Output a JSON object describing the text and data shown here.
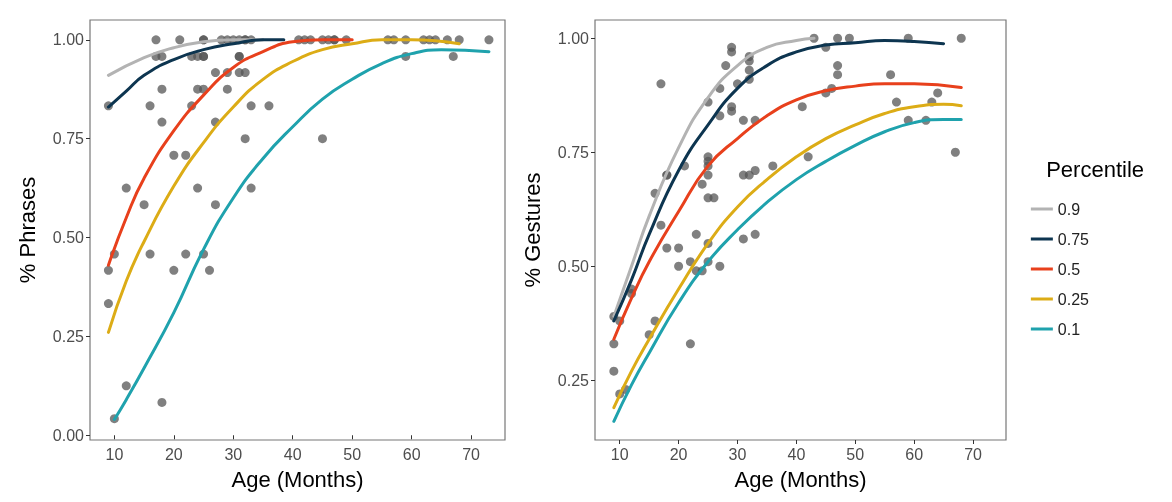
{
  "chart_data": [
    {
      "type": "scatter",
      "xlabel": "Age (Months)",
      "ylabel": "% Phrases",
      "xlim": [
        5.9,
        75.7
      ],
      "ylim": [
        -0.012,
        1.05
      ],
      "xticks": [
        10,
        20,
        30,
        40,
        50,
        60,
        70
      ],
      "yticks": [
        {
          "value": 0,
          "label": "0.00"
        },
        {
          "value": 0.25,
          "label": "0.25"
        },
        {
          "value": 0.5,
          "label": "0.50"
        },
        {
          "value": 0.75,
          "label": "0.75"
        },
        {
          "value": 1,
          "label": "1.00"
        }
      ],
      "grid": false,
      "legend": false,
      "series": [
        {
          "color": "#555555",
          "marker": "circle",
          "x": [
            17,
            21,
            25,
            25,
            28,
            29,
            30,
            31,
            32,
            32,
            33,
            41,
            42,
            43,
            45,
            46,
            47,
            47,
            49,
            56,
            57,
            59,
            62,
            63,
            64,
            66,
            68,
            73,
            17,
            18,
            23,
            24,
            25,
            25,
            31,
            31,
            59,
            67,
            27,
            29,
            31,
            32,
            18,
            24,
            25,
            29,
            9,
            16,
            23,
            33,
            36,
            18,
            27,
            32,
            45,
            20,
            22,
            12,
            24,
            33,
            15,
            27,
            10,
            16,
            22,
            25,
            9,
            20,
            26,
            9,
            12,
            18,
            10
          ],
          "values": [
            1,
            1,
            1,
            1,
            1,
            1,
            1,
            1,
            1,
            1,
            1,
            1,
            1,
            1,
            1,
            1,
            1,
            1,
            1,
            1,
            1,
            1,
            1,
            1,
            1,
            1,
            1,
            1,
            0.958,
            0.958,
            0.958,
            0.958,
            0.958,
            0.958,
            0.958,
            0.958,
            0.958,
            0.958,
            0.917,
            0.917,
            0.917,
            0.917,
            0.875,
            0.875,
            0.875,
            0.875,
            0.833,
            0.833,
            0.833,
            0.833,
            0.833,
            0.792,
            0.792,
            0.75,
            0.75,
            0.708,
            0.708,
            0.625,
            0.625,
            0.625,
            0.583,
            0.583,
            0.458,
            0.458,
            0.458,
            0.458,
            0.417,
            0.417,
            0.417,
            0.333,
            0.125,
            0.083,
            0.042
          ]
        },
        {
          "type": "line",
          "color": "#b3b3b3",
          "marker": "none",
          "line_style": "solid",
          "x": [
            9,
            15,
            20,
            25,
            30,
            35
          ],
          "values": [
            0.91,
            0.955,
            0.98,
            0.995,
            1.0,
            1.0
          ]
        },
        {
          "type": "line",
          "color": "#0d3550",
          "marker": "none",
          "line_style": "solid",
          "x": [
            9,
            12,
            15,
            20,
            25,
            30,
            35,
            38.5
          ],
          "values": [
            0.83,
            0.87,
            0.91,
            0.95,
            0.975,
            0.99,
            1.0,
            1.0
          ]
        },
        {
          "type": "line",
          "color": "#e8401c",
          "marker": "none",
          "line_style": "solid",
          "x": [
            9,
            12,
            15,
            20,
            25,
            30,
            35,
            40,
            45,
            50
          ],
          "values": [
            0.43,
            0.55,
            0.65,
            0.77,
            0.86,
            0.93,
            0.97,
            0.995,
            1.0,
            1.0
          ]
        },
        {
          "type": "line",
          "color": "#dcac16",
          "marker": "none",
          "line_style": "solid",
          "x": [
            9,
            12,
            15,
            20,
            25,
            30,
            35,
            40,
            45,
            50,
            55,
            60,
            68
          ],
          "values": [
            0.26,
            0.39,
            0.49,
            0.63,
            0.74,
            0.83,
            0.9,
            0.945,
            0.975,
            0.99,
            1.0,
            1.0,
            0.99
          ]
        },
        {
          "type": "line",
          "color": "#1fa2ad",
          "marker": "none",
          "line_style": "solid",
          "x": [
            10,
            12,
            15,
            20,
            25,
            30,
            35,
            40,
            45,
            50,
            55,
            60,
            65,
            73
          ],
          "values": [
            0.04,
            0.09,
            0.17,
            0.31,
            0.47,
            0.6,
            0.7,
            0.78,
            0.85,
            0.9,
            0.94,
            0.965,
            0.975,
            0.97
          ]
        }
      ]
    },
    {
      "type": "scatter",
      "xlabel": "Age (Months)",
      "ylabel": "% Gestures",
      "legend_title": "Percentile",
      "xlim": [
        5.8,
        75.6
      ],
      "ylim": [
        0.119,
        1.04
      ],
      "xticks": [
        10,
        20,
        30,
        40,
        50,
        60,
        70
      ],
      "yticks": [
        {
          "value": 0.25,
          "label": "0.25"
        },
        {
          "value": 0.5,
          "label": "0.50"
        },
        {
          "value": 0.75,
          "label": "0.75"
        },
        {
          "value": 1,
          "label": "1.00"
        }
      ],
      "grid": false,
      "legend": "right",
      "series": [
        {
          "color": "#555555",
          "marker": "circle",
          "x": [
            43,
            47,
            49,
            59,
            68,
            29,
            29,
            32,
            32,
            45,
            28,
            47,
            47,
            56,
            32,
            32,
            30,
            17,
            27,
            46,
            45,
            64,
            25,
            29,
            57,
            63,
            41,
            29,
            27,
            31,
            33,
            59,
            62,
            67,
            42,
            25,
            25,
            25,
            21,
            36,
            18,
            18,
            25,
            31,
            32,
            33,
            24,
            25,
            26,
            16,
            17,
            23,
            33,
            31,
            18,
            20,
            25,
            22,
            25,
            20,
            27,
            23,
            24,
            12,
            12,
            9,
            10,
            9,
            16,
            15,
            22,
            9,
            10,
            11
          ],
          "values": [
            1,
            1,
            1,
            1,
            1,
            0.98,
            0.97,
            0.96,
            0.95,
            0.98,
            0.94,
            0.94,
            0.92,
            0.92,
            0.93,
            0.91,
            0.9,
            0.9,
            0.89,
            0.89,
            0.88,
            0.88,
            0.86,
            0.85,
            0.86,
            0.86,
            0.85,
            0.84,
            0.83,
            0.82,
            0.82,
            0.82,
            0.82,
            0.75,
            0.74,
            0.74,
            0.73,
            0.72,
            0.72,
            0.72,
            0.7,
            0.7,
            0.7,
            0.7,
            0.7,
            0.71,
            0.68,
            0.65,
            0.65,
            0.66,
            0.59,
            0.57,
            0.57,
            0.56,
            0.54,
            0.54,
            0.55,
            0.51,
            0.51,
            0.5,
            0.5,
            0.49,
            0.49,
            0.45,
            0.44,
            0.39,
            0.38,
            0.33,
            0.38,
            0.35,
            0.33,
            0.27,
            0.22,
            0.23
          ]
        },
        {
          "type": "line",
          "name": "0.9",
          "color": "#b3b3b3",
          "marker": "none",
          "line_style": "solid",
          "x": [
            9,
            12,
            15,
            20,
            25,
            30,
            35,
            40,
            43
          ],
          "values": [
            0.39,
            0.5,
            0.61,
            0.76,
            0.87,
            0.94,
            0.98,
            0.995,
            1.0
          ]
        },
        {
          "type": "line",
          "name": "0.75",
          "color": "#0d3550",
          "marker": "none",
          "line_style": "solid",
          "x": [
            9,
            12,
            15,
            20,
            25,
            30,
            35,
            40,
            45,
            50,
            55,
            60,
            65
          ],
          "values": [
            0.38,
            0.47,
            0.57,
            0.71,
            0.81,
            0.89,
            0.94,
            0.97,
            0.985,
            0.99,
            0.995,
            0.993,
            0.988
          ]
        },
        {
          "type": "line",
          "name": "0.5",
          "color": "#e8401c",
          "marker": "none",
          "line_style": "solid",
          "x": [
            9,
            12,
            15,
            20,
            25,
            30,
            35,
            40,
            45,
            50,
            55,
            60,
            68
          ],
          "values": [
            0.34,
            0.43,
            0.51,
            0.62,
            0.72,
            0.78,
            0.83,
            0.865,
            0.885,
            0.895,
            0.9,
            0.9,
            0.892
          ]
        },
        {
          "type": "line",
          "name": "0.25",
          "color": "#dcac16",
          "marker": "none",
          "line_style": "solid",
          "x": [
            9,
            12,
            15,
            20,
            25,
            30,
            35,
            40,
            45,
            50,
            55,
            60,
            65,
            68
          ],
          "values": [
            0.19,
            0.27,
            0.34,
            0.45,
            0.55,
            0.63,
            0.69,
            0.74,
            0.78,
            0.81,
            0.835,
            0.85,
            0.855,
            0.852
          ]
        },
        {
          "type": "line",
          "name": "0.1",
          "color": "#1fa2ad",
          "marker": "none",
          "line_style": "solid",
          "x": [
            9,
            12,
            15,
            20,
            25,
            30,
            35,
            40,
            45,
            50,
            55,
            60,
            65,
            68
          ],
          "values": [
            0.16,
            0.24,
            0.31,
            0.42,
            0.51,
            0.58,
            0.64,
            0.69,
            0.73,
            0.765,
            0.795,
            0.815,
            0.822,
            0.822
          ]
        }
      ]
    }
  ]
}
